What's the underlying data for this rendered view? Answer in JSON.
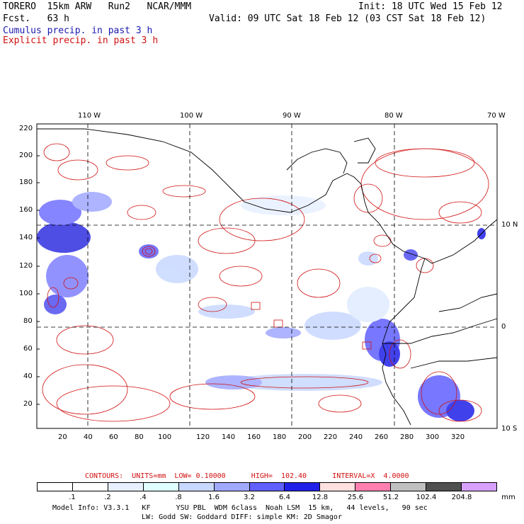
{
  "header": {
    "model": "TORERO  15km ARW   Run2   NCAR/MMM",
    "init": "Init: 18 UTC Wed 15 Feb 12",
    "fcst": "Fcst.   63 h",
    "valid": "Valid: 09 UTC Sat 18 Feb 12 (03 CST Sat 18 Feb 12)",
    "cumulus_label": "Cumulus precip. in past 3 h",
    "explicit_label": "Explicit precip. in past 3 h"
  },
  "colors": {
    "cumulus": "#1a1ab0",
    "explicit": "#d01010",
    "land_line": "#000000"
  },
  "map": {
    "top_lon_labels": [
      "110 W",
      "100 W",
      "90 W",
      "80 W",
      "70 W"
    ],
    "right_lat_labels": [
      "10 N",
      "0",
      "10 S"
    ],
    "y_ticks": [
      "220",
      "200",
      "180",
      "160",
      "140",
      "120",
      "100",
      "80",
      "60",
      "40",
      "20"
    ],
    "x_ticks": [
      "20",
      "40",
      "60",
      "80",
      "100",
      "120",
      "140",
      "160",
      "180",
      "200",
      "220",
      "240",
      "260",
      "280",
      "300",
      "320"
    ]
  },
  "footer": {
    "contours": "CONTOURS:  UNITS=mm  LOW= 0.10000      HIGH=  102.40      INTERVAL=X  4.0000",
    "colorbar_labels": [
      ".1",
      ".2",
      ".4",
      ".8",
      "1.6",
      "3.2",
      "6.4",
      "12.8",
      "25.6",
      "51.2",
      "102.4",
      "204.8"
    ],
    "colorbar_unit": "mm",
    "colorbar_colors": [
      "#ffffff",
      "#ffffff",
      "#e8f0ff",
      "#e0ffff",
      "#c8d8ff",
      "#a0a8ff",
      "#6060ff",
      "#2020e8",
      "#ffe0e0",
      "#ff80b0",
      "#c0c0c0",
      "#505050",
      "#d8a0ff"
    ],
    "model_info_1": "Model Info: V3.3.1   KF      YSU PBL  WDM 6class  Noah LSM  15 km,   44 levels,   90 sec",
    "model_info_2": "LW: Godd SW: Goddard DIFF: simple KM: 2D Smagor"
  }
}
